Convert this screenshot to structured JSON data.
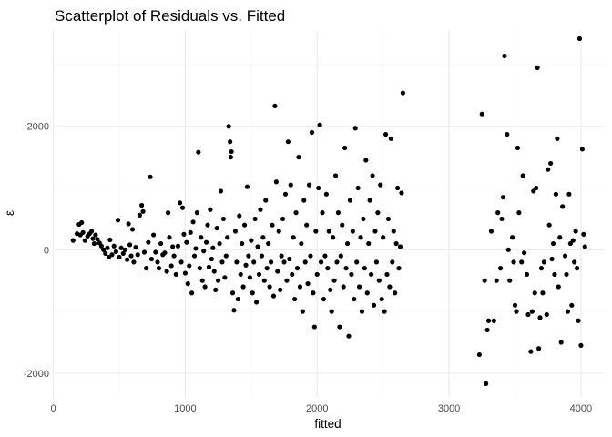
{
  "chart_data": {
    "type": "scatter",
    "title": "Scatterplot of Residuals vs. Fitted",
    "xlabel": "fitted",
    "ylabel": "ε",
    "xlim": [
      10,
      4180
    ],
    "ylim": [
      -2400,
      3560
    ],
    "xticks": [
      0,
      1000,
      2000,
      3000,
      4000
    ],
    "yticks": [
      -2000,
      0,
      2000
    ],
    "xtick_labels": [
      "0",
      "1000",
      "2000",
      "3000",
      "4000"
    ],
    "ytick_labels": [
      "-2000",
      "0",
      "2000"
    ],
    "grid": true,
    "legend": "none",
    "point_color": "#000000",
    "points": [
      [
        150,
        150
      ],
      [
        180,
        260
      ],
      [
        195,
        410
      ],
      [
        205,
        240
      ],
      [
        215,
        440
      ],
      [
        225,
        280
      ],
      [
        240,
        150
      ],
      [
        260,
        220
      ],
      [
        275,
        260
      ],
      [
        290,
        300
      ],
      [
        300,
        180
      ],
      [
        310,
        100
      ],
      [
        320,
        240
      ],
      [
        335,
        170
      ],
      [
        350,
        110
      ],
      [
        365,
        60
      ],
      [
        380,
        0
      ],
      [
        395,
        -60
      ],
      [
        410,
        30
      ],
      [
        420,
        -120
      ],
      [
        430,
        160
      ],
      [
        445,
        -80
      ],
      [
        460,
        60
      ],
      [
        475,
        -30
      ],
      [
        490,
        480
      ],
      [
        500,
        -120
      ],
      [
        515,
        30
      ],
      [
        530,
        -60
      ],
      [
        545,
        0
      ],
      [
        560,
        -160
      ],
      [
        570,
        420
      ],
      [
        580,
        80
      ],
      [
        590,
        -100
      ],
      [
        600,
        330
      ],
      [
        610,
        -200
      ],
      [
        625,
        40
      ],
      [
        640,
        -80
      ],
      [
        655,
        560
      ],
      [
        670,
        720
      ],
      [
        680,
        620
      ],
      [
        690,
        -40
      ],
      [
        705,
        -300
      ],
      [
        720,
        120
      ],
      [
        735,
        1180
      ],
      [
        745,
        -150
      ],
      [
        760,
        240
      ],
      [
        775,
        -40
      ],
      [
        790,
        -200
      ],
      [
        800,
        -300
      ],
      [
        815,
        100
      ],
      [
        830,
        -80
      ],
      [
        845,
        -50
      ],
      [
        860,
        -350
      ],
      [
        870,
        600
      ],
      [
        880,
        200
      ],
      [
        895,
        -260
      ],
      [
        905,
        50
      ],
      [
        915,
        -100
      ],
      [
        930,
        -400
      ],
      [
        945,
        60
      ],
      [
        960,
        760
      ],
      [
        970,
        -200
      ],
      [
        980,
        680
      ],
      [
        990,
        250
      ],
      [
        1000,
        -380
      ],
      [
        1010,
        120
      ],
      [
        1020,
        -550
      ],
      [
        1030,
        -260
      ],
      [
        1040,
        280
      ],
      [
        1050,
        -700
      ],
      [
        1060,
        450
      ],
      [
        1070,
        -100
      ],
      [
        1080,
        20
      ],
      [
        1090,
        600
      ],
      [
        1100,
        1580
      ],
      [
        1110,
        -300
      ],
      [
        1120,
        200
      ],
      [
        1130,
        -500
      ],
      [
        1140,
        -20
      ],
      [
        1150,
        -600
      ],
      [
        1160,
        120
      ],
      [
        1170,
        400
      ],
      [
        1180,
        -280
      ],
      [
        1190,
        650
      ],
      [
        1200,
        -150
      ],
      [
        1210,
        30
      ],
      [
        1220,
        -350
      ],
      [
        1230,
        -650
      ],
      [
        1240,
        350
      ],
      [
        1250,
        -500
      ],
      [
        1260,
        100
      ],
      [
        1270,
        950
      ],
      [
        1280,
        -200
      ],
      [
        1290,
        500
      ],
      [
        1300,
        -450
      ],
      [
        1310,
        -100
      ],
      [
        1320,
        200
      ],
      [
        1330,
        2000
      ],
      [
        1340,
        1750
      ],
      [
        1345,
        1500
      ],
      [
        1350,
        1590
      ],
      [
        1360,
        -700
      ],
      [
        1370,
        -980
      ],
      [
        1380,
        300
      ],
      [
        1390,
        -200
      ],
      [
        1400,
        -800
      ],
      [
        1410,
        550
      ],
      [
        1420,
        -400
      ],
      [
        1430,
        100
      ],
      [
        1440,
        -600
      ],
      [
        1450,
        400
      ],
      [
        1460,
        -250
      ],
      [
        1470,
        1020
      ],
      [
        1480,
        -100
      ],
      [
        1490,
        -450
      ],
      [
        1500,
        150
      ],
      [
        1510,
        -700
      ],
      [
        1520,
        -200
      ],
      [
        1530,
        500
      ],
      [
        1540,
        -850
      ],
      [
        1550,
        50
      ],
      [
        1560,
        -400
      ],
      [
        1570,
        650
      ],
      [
        1580,
        -100
      ],
      [
        1590,
        200
      ],
      [
        1600,
        -500
      ],
      [
        1610,
        800
      ],
      [
        1620,
        -300
      ],
      [
        1630,
        100
      ],
      [
        1640,
        -600
      ],
      [
        1650,
        -200
      ],
      [
        1660,
        400
      ],
      [
        1670,
        -750
      ],
      [
        1680,
        2330
      ],
      [
        1690,
        1100
      ],
      [
        1700,
        -350
      ],
      [
        1710,
        300
      ],
      [
        1720,
        -650
      ],
      [
        1730,
        -100
      ],
      [
        1740,
        500
      ],
      [
        1750,
        -200
      ],
      [
        1760,
        900
      ],
      [
        1770,
        -500
      ],
      [
        1780,
        1750
      ],
      [
        1790,
        -150
      ],
      [
        1800,
        1050
      ],
      [
        1810,
        -400
      ],
      [
        1820,
        200
      ],
      [
        1830,
        -800
      ],
      [
        1840,
        600
      ],
      [
        1850,
        -300
      ],
      [
        1860,
        1500
      ],
      [
        1870,
        -600
      ],
      [
        1880,
        100
      ],
      [
        1890,
        -1000
      ],
      [
        1900,
        800
      ],
      [
        1910,
        -200
      ],
      [
        1920,
        400
      ],
      [
        1930,
        -550
      ],
      [
        1940,
        1050
      ],
      [
        1950,
        -100
      ],
      [
        1960,
        1900
      ],
      [
        1970,
        -700
      ],
      [
        1980,
        -1250
      ],
      [
        1990,
        300
      ],
      [
        2000,
        -400
      ],
      [
        2010,
        1000
      ],
      [
        2020,
        2020
      ],
      [
        2030,
        -200
      ],
      [
        2040,
        600
      ],
      [
        2050,
        -800
      ],
      [
        2060,
        -100
      ],
      [
        2070,
        900
      ],
      [
        2080,
        -300
      ],
      [
        2090,
        300
      ],
      [
        2100,
        -650
      ],
      [
        2110,
        -1000
      ],
      [
        2120,
        200
      ],
      [
        2130,
        -500
      ],
      [
        2140,
        1200
      ],
      [
        2150,
        -200
      ],
      [
        2160,
        600
      ],
      [
        2170,
        -1250
      ],
      [
        2180,
        -100
      ],
      [
        2190,
        400
      ],
      [
        2200,
        -600
      ],
      [
        2210,
        1650
      ],
      [
        2220,
        -300
      ],
      [
        2230,
        100
      ],
      [
        2240,
        -1400
      ],
      [
        2250,
        800
      ],
      [
        2260,
        -400
      ],
      [
        2270,
        300
      ],
      [
        2280,
        -800
      ],
      [
        2290,
        1970
      ],
      [
        2300,
        -200
      ],
      [
        2310,
        1000
      ],
      [
        2320,
        -600
      ],
      [
        2330,
        200
      ],
      [
        2340,
        -1000
      ],
      [
        2350,
        500
      ],
      [
        2360,
        -300
      ],
      [
        2370,
        1450
      ],
      [
        2380,
        -700
      ],
      [
        2390,
        100
      ],
      [
        2400,
        800
      ],
      [
        2410,
        -400
      ],
      [
        2420,
        1200
      ],
      [
        2430,
        -900
      ],
      [
        2440,
        300
      ],
      [
        2450,
        -200
      ],
      [
        2460,
        600
      ],
      [
        2470,
        -500
      ],
      [
        2480,
        1050
      ],
      [
        2490,
        -800
      ],
      [
        2500,
        200
      ],
      [
        2510,
        -1000
      ],
      [
        2520,
        1870
      ],
      [
        2530,
        -400
      ],
      [
        2540,
        500
      ],
      [
        2550,
        -600
      ],
      [
        2560,
        1800
      ],
      [
        2570,
        -200
      ],
      [
        2580,
        300
      ],
      [
        2590,
        -700
      ],
      [
        2600,
        100
      ],
      [
        2610,
        1000
      ],
      [
        2620,
        -300
      ],
      [
        2630,
        50
      ],
      [
        2640,
        920
      ],
      [
        2650,
        2540
      ],
      [
        3230,
        -1700
      ],
      [
        3250,
        2200
      ],
      [
        3270,
        -500
      ],
      [
        3280,
        -2170
      ],
      [
        3290,
        -1300
      ],
      [
        3300,
        -1150
      ],
      [
        3320,
        300
      ],
      [
        3340,
        -1150
      ],
      [
        3360,
        -500
      ],
      [
        3370,
        600
      ],
      [
        3390,
        -300
      ],
      [
        3400,
        500
      ],
      [
        3410,
        850
      ],
      [
        3420,
        3140
      ],
      [
        3440,
        1870
      ],
      [
        3450,
        0
      ],
      [
        3460,
        -500
      ],
      [
        3480,
        200
      ],
      [
        3490,
        -200
      ],
      [
        3500,
        -900
      ],
      [
        3510,
        -1000
      ],
      [
        3520,
        1650
      ],
      [
        3530,
        600
      ],
      [
        3550,
        -200
      ],
      [
        3560,
        1200
      ],
      [
        3570,
        -50
      ],
      [
        3590,
        -400
      ],
      [
        3600,
        -1050
      ],
      [
        3620,
        -1650
      ],
      [
        3630,
        -1000
      ],
      [
        3640,
        950
      ],
      [
        3650,
        -700
      ],
      [
        3660,
        1000
      ],
      [
        3670,
        2950
      ],
      [
        3680,
        -1600
      ],
      [
        3690,
        -1100
      ],
      [
        3700,
        -300
      ],
      [
        3710,
        -700
      ],
      [
        3720,
        -200
      ],
      [
        3740,
        -1050
      ],
      [
        3750,
        1300
      ],
      [
        3760,
        400
      ],
      [
        3770,
        1400
      ],
      [
        3780,
        -150
      ],
      [
        3790,
        100
      ],
      [
        3800,
        -400
      ],
      [
        3810,
        900
      ],
      [
        3820,
        1800
      ],
      [
        3830,
        -600
      ],
      [
        3840,
        200
      ],
      [
        3850,
        -1500
      ],
      [
        3860,
        700
      ],
      [
        3880,
        -100
      ],
      [
        3890,
        -400
      ],
      [
        3900,
        -1000
      ],
      [
        3910,
        900
      ],
      [
        3920,
        100
      ],
      [
        3930,
        -900
      ],
      [
        3940,
        150
      ],
      [
        3950,
        -200
      ],
      [
        3960,
        300
      ],
      [
        3970,
        -300
      ],
      [
        3980,
        -1150
      ],
      [
        3990,
        3420
      ],
      [
        4000,
        -1550
      ],
      [
        4010,
        1630
      ],
      [
        4020,
        250
      ],
      [
        4030,
        50
      ]
    ]
  }
}
